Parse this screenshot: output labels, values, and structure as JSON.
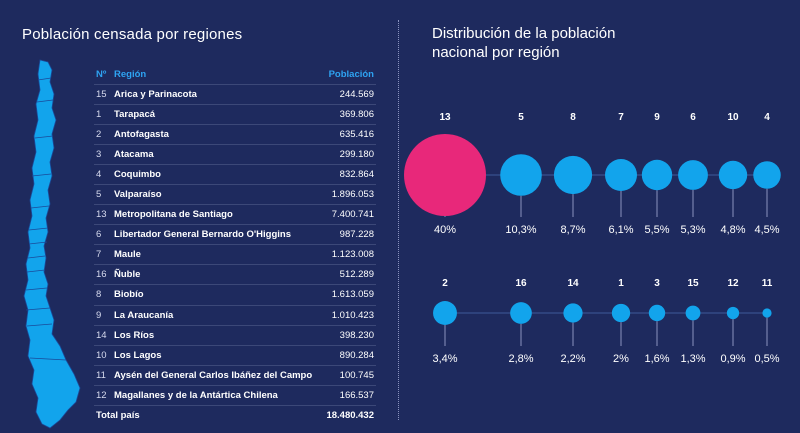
{
  "left_title": "Población censada por regiones",
  "right_title_line1": "Distribución de la población",
  "right_title_line2": "nacional por región",
  "colors": {
    "background": "#1e2a5e",
    "accent": "#2ea3f2",
    "highlight": "#e8287a",
    "bubble": "#12a4ec"
  },
  "table": {
    "headers": {
      "num": "Nº",
      "region": "Región",
      "population": "Población"
    },
    "rows": [
      {
        "num": "15",
        "region": "Arica y Parinacota",
        "population": "244.569"
      },
      {
        "num": "1",
        "region": "Tarapacá",
        "population": "369.806"
      },
      {
        "num": "2",
        "region": "Antofagasta",
        "population": "635.416"
      },
      {
        "num": "3",
        "region": "Atacama",
        "population": "299.180"
      },
      {
        "num": "4",
        "region": "Coquimbo",
        "population": "832.864"
      },
      {
        "num": "5",
        "region": "Valparaíso",
        "population": "1.896.053"
      },
      {
        "num": "13",
        "region": "Metropolitana de Santiago",
        "population": "7.400.741"
      },
      {
        "num": "6",
        "region": "Libertador General Bernardo O'Higgins",
        "population": "987.228"
      },
      {
        "num": "7",
        "region": "Maule",
        "population": "1.123.008"
      },
      {
        "num": "16",
        "region": "Ñuble",
        "population": "512.289"
      },
      {
        "num": "8",
        "region": "Biobío",
        "population": "1.613.059"
      },
      {
        "num": "9",
        "region": "La Araucanía",
        "population": "1.010.423"
      },
      {
        "num": "14",
        "region": "Los Ríos",
        "population": "398.230"
      },
      {
        "num": "10",
        "region": "Los Lagos",
        "population": "890.284"
      },
      {
        "num": "11",
        "region": "Aysén del General Carlos Ibáñez del Campo",
        "population": "100.745"
      },
      {
        "num": "12",
        "region": "Magallanes y de la Antártica Chilena",
        "population": "166.537"
      }
    ],
    "total": {
      "label": "Total país",
      "population": "18.480.432"
    }
  },
  "chart_data": {
    "type": "scatter",
    "rows": [
      {
        "labels": [
          "13",
          "5",
          "8",
          "7",
          "9",
          "6",
          "10",
          "4"
        ],
        "values": [
          40,
          10.3,
          8.7,
          6.1,
          5.5,
          5.3,
          4.8,
          4.5
        ],
        "value_labels": [
          "40%",
          "10,3%",
          "8,7%",
          "6,1%",
          "5,5%",
          "5,3%",
          "4,8%",
          "4,5%"
        ],
        "highlight_index": 0
      },
      {
        "labels": [
          "2",
          "16",
          "14",
          "1",
          "3",
          "15",
          "12",
          "11"
        ],
        "values": [
          3.4,
          2.8,
          2.2,
          2,
          1.6,
          1.3,
          0.9,
          0.5
        ],
        "value_labels": [
          "3,4%",
          "2,8%",
          "2,2%",
          "2%",
          "1,6%",
          "1,3%",
          "0,9%",
          "0,5%"
        ],
        "highlight_index": -1
      }
    ]
  }
}
